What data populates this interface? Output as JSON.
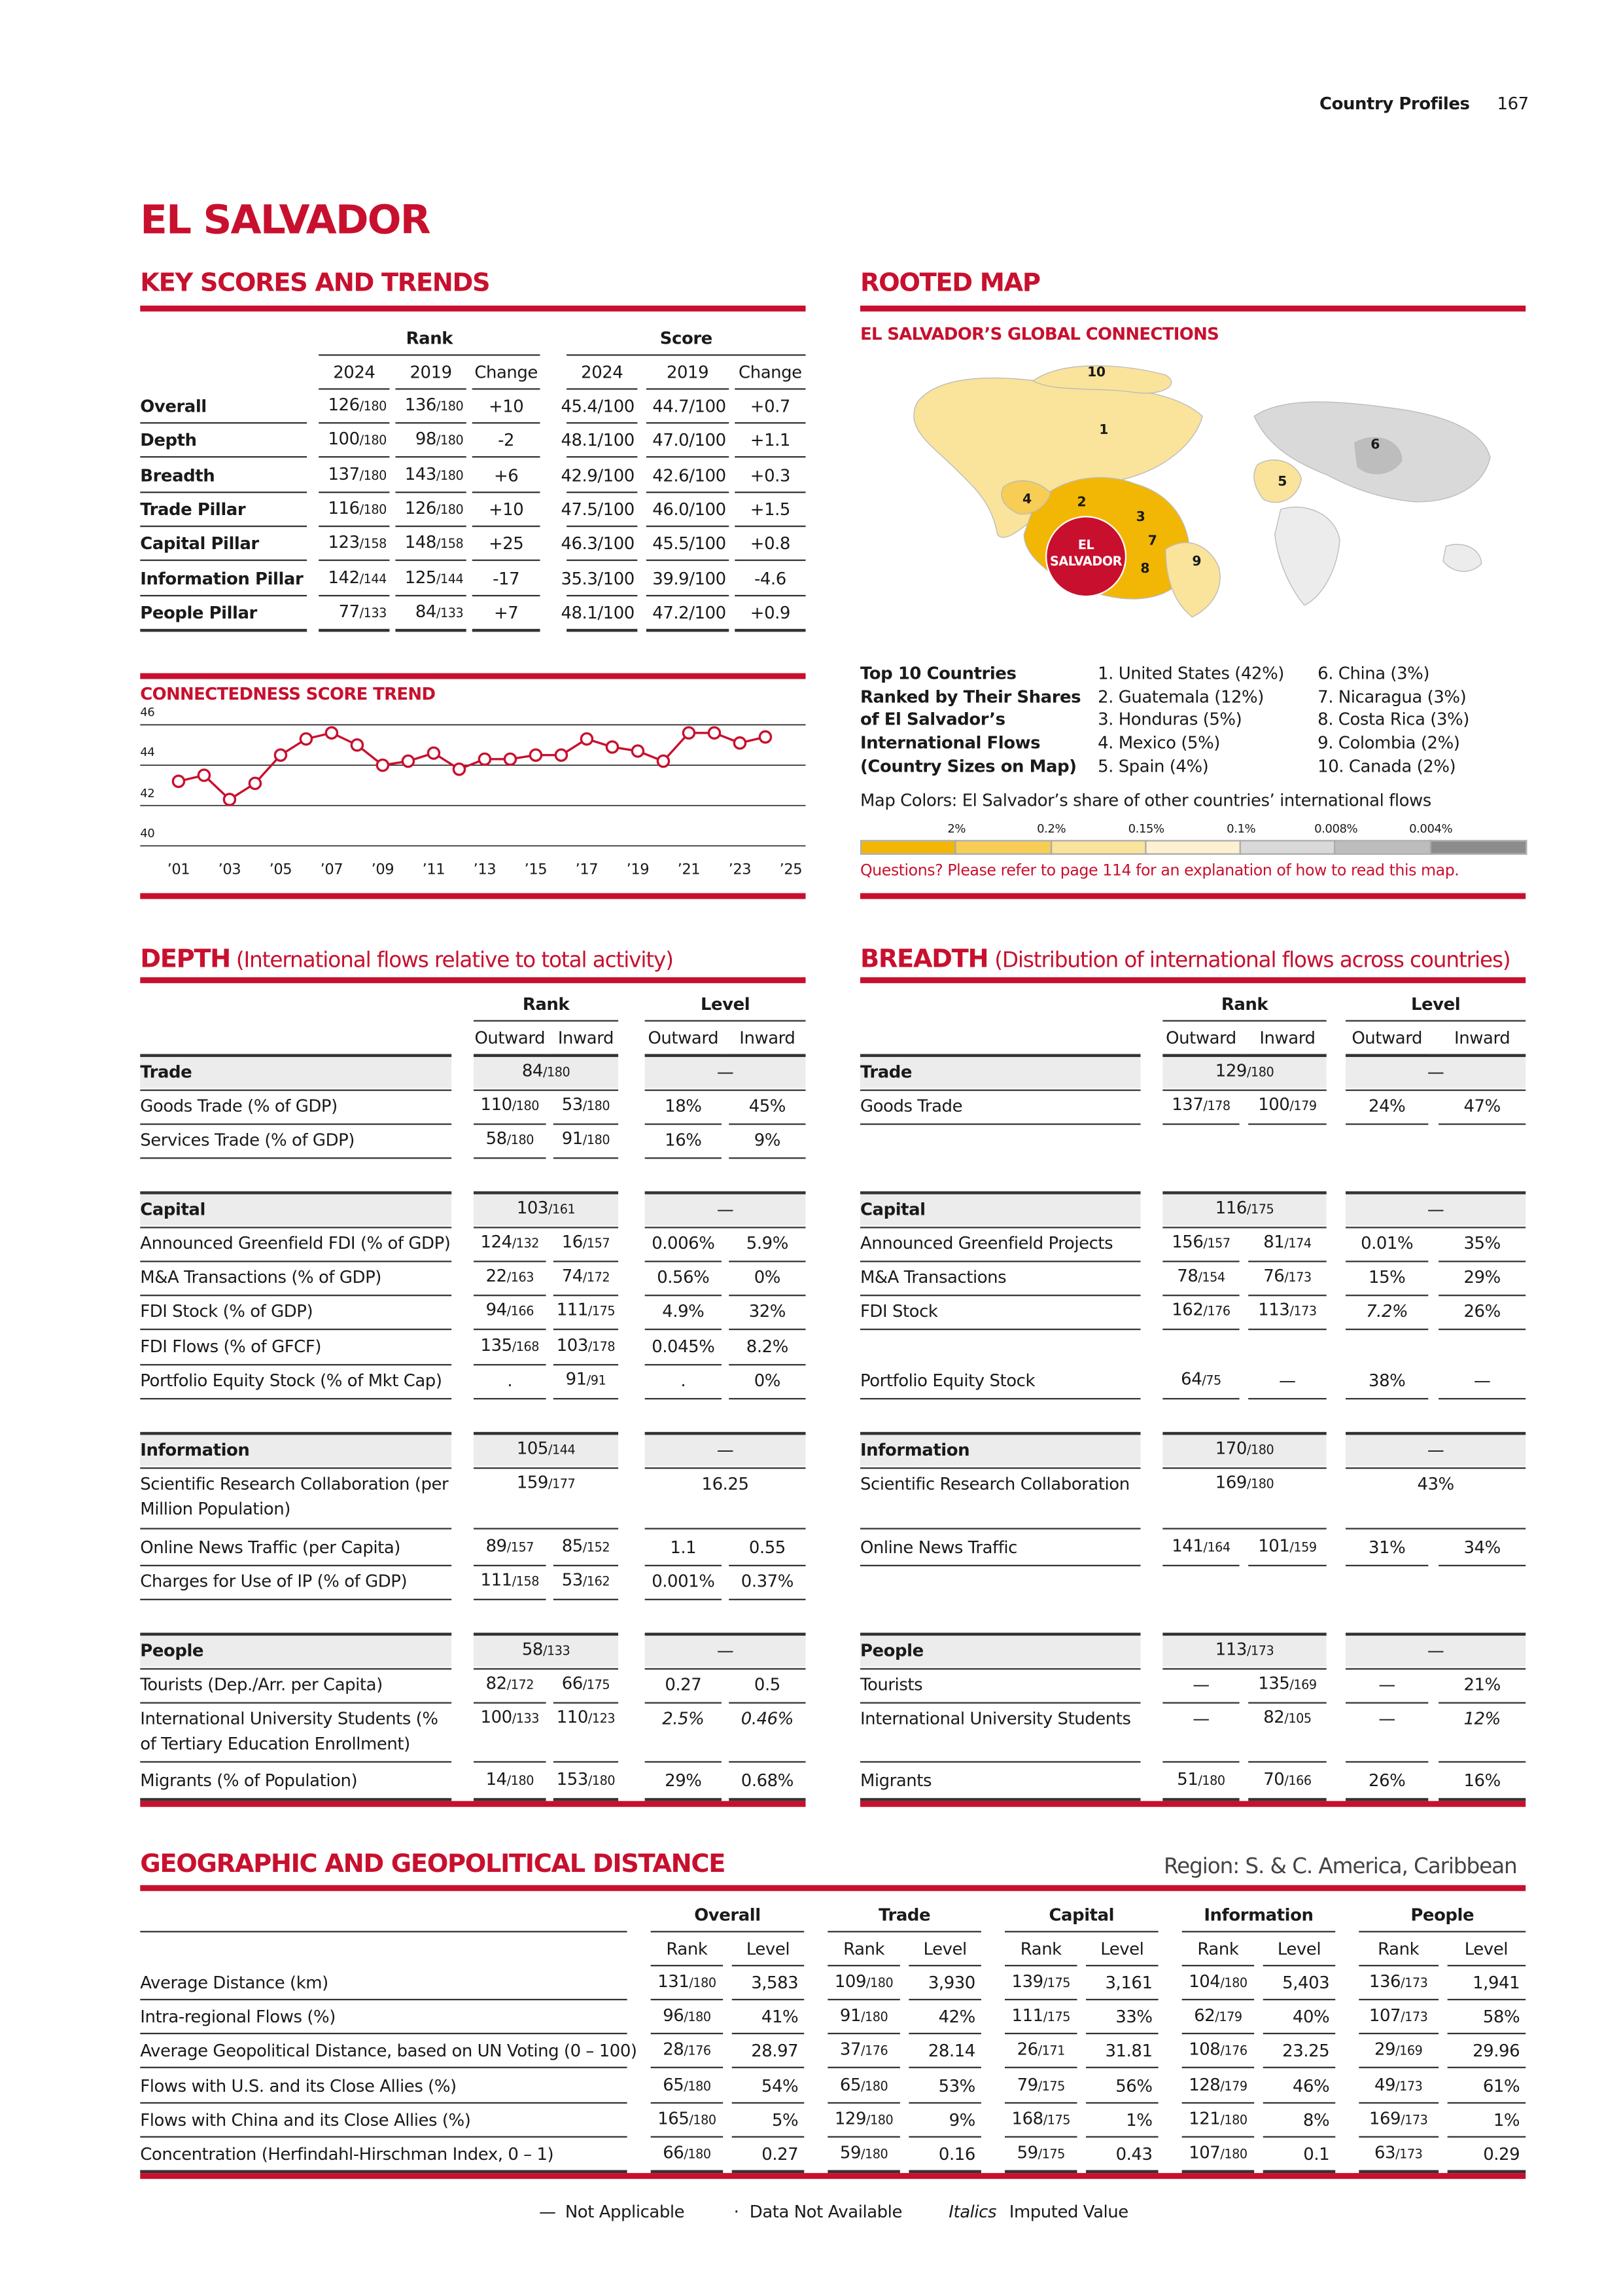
{
  "header": {
    "section": "Country Profiles",
    "page": "167"
  },
  "title": "EL SALVADOR",
  "key_scores": {
    "title": "KEY SCORES AND TRENDS",
    "group_headers": [
      "Rank",
      "Score"
    ],
    "columns": [
      "2024",
      "2019",
      "Change",
      "2024",
      "2019",
      "Change"
    ],
    "rows": [
      {
        "label": "Overall",
        "cells": [
          "126/180",
          "136/180",
          "+10",
          "45.4/100",
          "44.7/100",
          "+0.7"
        ]
      },
      {
        "label": "Depth",
        "cells": [
          "100/180",
          "98/180",
          "-2",
          "48.1/100",
          "47.0/100",
          "+1.1"
        ]
      },
      {
        "label": "Breadth",
        "cells": [
          "137/180",
          "143/180",
          "+6",
          "42.9/100",
          "42.6/100",
          "+0.3"
        ]
      },
      {
        "label": "Trade Pillar",
        "cells": [
          "116/180",
          "126/180",
          "+10",
          "47.5/100",
          "46.0/100",
          "+1.5"
        ]
      },
      {
        "label": "Capital Pillar",
        "cells": [
          "123/158",
          "148/158",
          "+25",
          "46.3/100",
          "45.5/100",
          "+0.8"
        ]
      },
      {
        "label": "Information Pillar",
        "cells": [
          "142/144",
          "125/144",
          "-17",
          "35.3/100",
          "39.9/100",
          "-4.6"
        ]
      },
      {
        "label": "People Pillar",
        "cells": [
          "77/133",
          "84/133",
          "+7",
          "48.1/100",
          "47.2/100",
          "+0.9"
        ]
      }
    ]
  },
  "chart_data": {
    "type": "line",
    "title": "CONNECTEDNESS SCORE TREND",
    "x": [
      2001,
      2002,
      2003,
      2004,
      2005,
      2006,
      2007,
      2008,
      2009,
      2010,
      2011,
      2012,
      2013,
      2014,
      2015,
      2016,
      2017,
      2018,
      2019,
      2020,
      2021,
      2022,
      2023,
      2024
    ],
    "values": [
      43.2,
      43.5,
      42.3,
      43.1,
      44.5,
      45.3,
      45.6,
      45.0,
      44.0,
      44.2,
      44.6,
      43.8,
      44.3,
      44.3,
      44.5,
      44.5,
      45.3,
      44.9,
      44.7,
      44.2,
      45.6,
      45.6,
      45.1,
      45.4
    ],
    "color": "#c8102e",
    "xlim": [
      2001,
      2025
    ],
    "ylim": [
      40,
      46
    ],
    "xticks": [
      {
        "value": 2001,
        "label": "’01"
      },
      {
        "value": 2003,
        "label": "’03"
      },
      {
        "value": 2005,
        "label": "’05"
      },
      {
        "value": 2007,
        "label": "’07"
      },
      {
        "value": 2009,
        "label": "’09"
      },
      {
        "value": 2011,
        "label": "’11"
      },
      {
        "value": 2013,
        "label": "’13"
      },
      {
        "value": 2015,
        "label": "’15"
      },
      {
        "value": 2017,
        "label": "’17"
      },
      {
        "value": 2019,
        "label": "’19"
      },
      {
        "value": 2021,
        "label": "’21"
      },
      {
        "value": 2023,
        "label": "’23"
      },
      {
        "value": 2025,
        "label": "’25"
      }
    ],
    "yticks": [
      40,
      42,
      44,
      46
    ],
    "grid": true
  },
  "rooted_map": {
    "title": "ROOTED MAP",
    "subtitle": "EL SALVADOR’S GLOBAL CONNECTIONS",
    "map_labels": [
      "1",
      "2",
      "3",
      "4",
      "5",
      "6",
      "7",
      "8",
      "9",
      "10"
    ],
    "center_label": "EL SALVADOR",
    "top10_heading": "Top 10 Countries Ranked by Their Shares of El Salvador’s International Flows (Country Sizes on Map)",
    "top10": [
      "1. United States (42%)",
      "2. Guatemala (12%)",
      "3. Honduras (5%)",
      "4. Mexico (5%)",
      "5. Spain (4%)",
      "6. China (3%)",
      "7. Nicaragua (3%)",
      "8. Costa Rica (3%)",
      "9. Colombia (2%)",
      "10. Canada (2%)"
    ],
    "colors_caption": "Map Colors: El Salvador’s share of other countries’ international flows",
    "scale_labels": [
      "2%",
      "0.2%",
      "0.15%",
      "0.1%",
      "0.008%",
      "0.004%"
    ],
    "scale_colors": [
      "#f2b705",
      "#f7cd55",
      "#fae39a",
      "#fdf1d2",
      "#d9d9d9",
      "#bdbdbd",
      "#8c8c8c"
    ],
    "note": "Questions? Please refer to page 114 for an explanation of how to read this map."
  },
  "depth": {
    "title": "DEPTH",
    "subtitle": "(International flows relative to total activity)",
    "group_headers": [
      "Rank",
      "Level"
    ],
    "columns": [
      "Outward",
      "Inward",
      "Outward",
      "Inward"
    ],
    "rows": [
      {
        "type": "section",
        "label": "Trade",
        "cells": [
          "84/180",
          "—"
        ]
      },
      {
        "label": "Goods Trade (% of GDP)",
        "cells": [
          "110/180",
          "53/180",
          "18%",
          "45%"
        ]
      },
      {
        "label": "Services Trade (% of GDP)",
        "cells": [
          "58/180",
          "91/180",
          "16%",
          "9%"
        ]
      },
      {
        "type": "section",
        "label": "Capital",
        "cells": [
          "103/161",
          "—"
        ]
      },
      {
        "label": "Announced Greenfield FDI (% of GDP)",
        "cells": [
          "124/132",
          "16/157",
          "0.006%",
          "5.9%"
        ]
      },
      {
        "label": "M&A Transactions (% of GDP)",
        "cells": [
          "22/163",
          "74/172",
          "0.56%",
          "0%"
        ]
      },
      {
        "label": "FDI Stock (% of GDP)",
        "cells": [
          "94/166",
          "111/175",
          "4.9%",
          "32%"
        ]
      },
      {
        "label": "FDI Flows (% of GFCF)",
        "cells": [
          "135/168",
          "103/178",
          "0.045%",
          "8.2%"
        ]
      },
      {
        "label": "Portfolio Equity Stock (% of Mkt Cap)",
        "cells": [
          ".",
          "91/91",
          ".",
          "0%"
        ]
      },
      {
        "type": "section",
        "label": "Information",
        "cells": [
          "105/144",
          "—"
        ]
      },
      {
        "label": "Scientific Research Collaboration (per Million Population)",
        "cells": [
          "159/177",
          "16.25"
        ]
      },
      {
        "label": "Online News Traffic (per Capita)",
        "cells": [
          "89/157",
          "85/152",
          "1.1",
          "0.55"
        ]
      },
      {
        "label": "Charges for Use of IP (% of GDP)",
        "cells": [
          "111/158",
          "53/162",
          "0.001%",
          "0.37%"
        ]
      },
      {
        "type": "section",
        "label": "People",
        "cells": [
          "58/133",
          "—"
        ]
      },
      {
        "label": "Tourists (Dep./Arr. per Capita)",
        "cells": [
          "82/172",
          "66/175",
          "0.27",
          "0.5"
        ]
      },
      {
        "label": "International University Students (% of Tertiary Education Enrollment)",
        "cells": [
          "100/133",
          "110/123",
          {
            "value": "2.5%",
            "style": "italic"
          },
          {
            "value": "0.46%",
            "style": "italic"
          }
        ]
      },
      {
        "label": "Migrants (% of Population)",
        "cells": [
          "14/180",
          "153/180",
          "29%",
          "0.68%"
        ]
      }
    ]
  },
  "breadth": {
    "title": "BREADTH",
    "subtitle": "(Distribution of international flows across countries)",
    "group_headers": [
      "Rank",
      "Level"
    ],
    "columns": [
      "Outward",
      "Inward",
      "Outward",
      "Inward"
    ],
    "rows": [
      {
        "type": "section",
        "label": "Trade",
        "cells": [
          "129/180",
          "—"
        ]
      },
      {
        "label": "Goods Trade",
        "cells": [
          "137/178",
          "100/179",
          "24%",
          "47%"
        ]
      },
      {
        "type": "section",
        "label": "Capital",
        "cells": [
          "116/175",
          "—"
        ]
      },
      {
        "label": "Announced Greenfield Projects",
        "cells": [
          "156/157",
          "81/174",
          "0.01%",
          "35%"
        ]
      },
      {
        "label": "M&A Transactions",
        "cells": [
          "78/154",
          "76/173",
          "15%",
          "29%"
        ]
      },
      {
        "label": "FDI Stock",
        "cells": [
          "162/176",
          "113/173",
          {
            "value": "7.2%",
            "style": "italic"
          },
          "26%"
        ]
      },
      {
        "label": "Portfolio Equity Stock",
        "cells": [
          "64/75",
          "—",
          "38%",
          "—"
        ]
      },
      {
        "type": "section",
        "label": "Information",
        "cells": [
          "170/180",
          "—"
        ]
      },
      {
        "label": "Scientific Research Collaboration",
        "cells": [
          "169/180",
          "43%"
        ]
      },
      {
        "label": "Online News Traffic",
        "cells": [
          "141/164",
          "101/159",
          "31%",
          "34%"
        ]
      },
      {
        "type": "section",
        "label": "People",
        "cells": [
          "113/173",
          "—"
        ]
      },
      {
        "label": "Tourists",
        "cells": [
          "—",
          "135/169",
          "—",
          "21%"
        ]
      },
      {
        "label": "International University Students",
        "cells": [
          "—",
          "82/105",
          "—",
          {
            "value": "12%",
            "style": "italic"
          }
        ]
      },
      {
        "label": "Migrants",
        "cells": [
          "51/180",
          "70/166",
          "26%",
          "16%"
        ]
      }
    ]
  },
  "distance": {
    "title": "GEOGRAPHIC AND GEOPOLITICAL DISTANCE",
    "region": "Region: S. & C. America, Caribbean",
    "group_headers": [
      "Overall",
      "Trade",
      "Capital",
      "Information",
      "People"
    ],
    "columns": [
      "Rank",
      "Level"
    ],
    "rows": [
      {
        "label": "Average Distance (km)",
        "cells": [
          "131/180",
          "3,583",
          "109/180",
          "3,930",
          "139/175",
          "3,161",
          "104/180",
          "5,403",
          "136/173",
          "1,941"
        ]
      },
      {
        "label": "Intra-regional Flows (%)",
        "cells": [
          "96/180",
          "41%",
          "91/180",
          "42%",
          "111/175",
          "33%",
          "62/179",
          "40%",
          "107/173",
          "58%"
        ]
      },
      {
        "label": "Average Geopolitical Distance, based on UN Voting (0 – 100)",
        "cells": [
          "28/176",
          "28.97",
          "37/176",
          "28.14",
          "26/171",
          "31.81",
          "108/176",
          "23.25",
          "29/169",
          "29.96"
        ]
      },
      {
        "label": "Flows with U.S. and its Close Allies (%)",
        "cells": [
          "65/180",
          "54%",
          "65/180",
          "53%",
          "79/175",
          "56%",
          "128/179",
          "46%",
          "49/173",
          "61%"
        ]
      },
      {
        "label": "Flows with China and its Close Allies (%)",
        "cells": [
          "165/180",
          "5%",
          "129/180",
          "9%",
          "168/175",
          "1%",
          "121/180",
          "8%",
          "169/173",
          "1%"
        ]
      },
      {
        "label": "Concentration (Herfindahl-Hirschman Index, 0 – 1)",
        "cells": [
          "66/180",
          "0.27",
          "59/180",
          "0.16",
          "59/175",
          "0.43",
          "107/180",
          "0.1",
          "63/173",
          "0.29"
        ]
      }
    ]
  },
  "footer_legend": [
    {
      "symbol": "—",
      "text": "Not Applicable"
    },
    {
      "symbol": "·",
      "text": "Data Not Available"
    },
    {
      "symbol": "Italics",
      "text": "Imputed Value"
    }
  ]
}
